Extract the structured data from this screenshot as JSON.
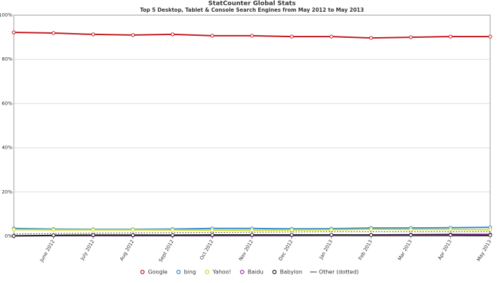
{
  "chart_data": {
    "type": "line",
    "title": "StatCounter Global Stats",
    "subtitle": "Top 5 Desktop, Tablet & Console Search Engines from May 2012 to May 2013",
    "categories": [
      null,
      "June 2012",
      "July 2012",
      "Aug 2012",
      "Sept 2012",
      "Oct 2012",
      "Nov 2012",
      "Dec 2012",
      "Jan 2013",
      "Feb 2013",
      "Mar 2013",
      "Apr 2013",
      "May 2013"
    ],
    "ylim": [
      0,
      100
    ],
    "yticks": [
      {
        "value": 0,
        "label": "0%"
      },
      {
        "value": 20,
        "label": "20%"
      },
      {
        "value": 40,
        "label": "40%"
      },
      {
        "value": 60,
        "label": "60%"
      },
      {
        "value": 80,
        "label": "80%"
      },
      {
        "value": 100,
        "label": "100%"
      }
    ],
    "grid": true,
    "legend": "bottom",
    "series": [
      {
        "name": "Google",
        "color": "#c0171c",
        "markers": true,
        "values": [
          92.2,
          91.9,
          91.3,
          91.0,
          91.3,
          90.7,
          90.7,
          90.3,
          90.3,
          89.7,
          90.0,
          90.3,
          90.3
        ]
      },
      {
        "name": "bing",
        "color": "#2a8bd0",
        "markers": true,
        "values": [
          3.5,
          3.2,
          3.1,
          3.1,
          3.2,
          3.5,
          3.5,
          3.3,
          3.4,
          3.7,
          3.7,
          3.8,
          4.0
        ]
      },
      {
        "name": "Yahoo!",
        "color": "#d8d820",
        "markers": true,
        "values": [
          3.0,
          2.9,
          2.9,
          2.9,
          2.8,
          2.7,
          2.7,
          2.8,
          2.9,
          3.1,
          3.0,
          3.0,
          2.9
        ]
      },
      {
        "name": "Baidu",
        "color": "#9b2fae",
        "markers": true,
        "values": [
          0.2,
          0.3,
          0.3,
          0.3,
          0.3,
          0.3,
          0.4,
          0.4,
          0.5,
          0.6,
          0.7,
          0.8,
          0.8
        ]
      },
      {
        "name": "Babylon",
        "color": "#222222",
        "markers": true,
        "values": [
          0.1,
          0.4,
          0.5,
          0.5,
          0.5,
          0.6,
          0.6,
          0.6,
          0.6,
          0.5,
          0.5,
          0.5,
          0.4
        ]
      },
      {
        "name": "Other (dotted)",
        "color": "#555544",
        "markers": false,
        "dashed": true,
        "values": [
          1.0,
          1.2,
          1.4,
          1.5,
          1.6,
          1.7,
          1.8,
          1.9,
          2.0,
          2.0,
          2.0,
          2.0,
          2.0
        ]
      }
    ]
  }
}
